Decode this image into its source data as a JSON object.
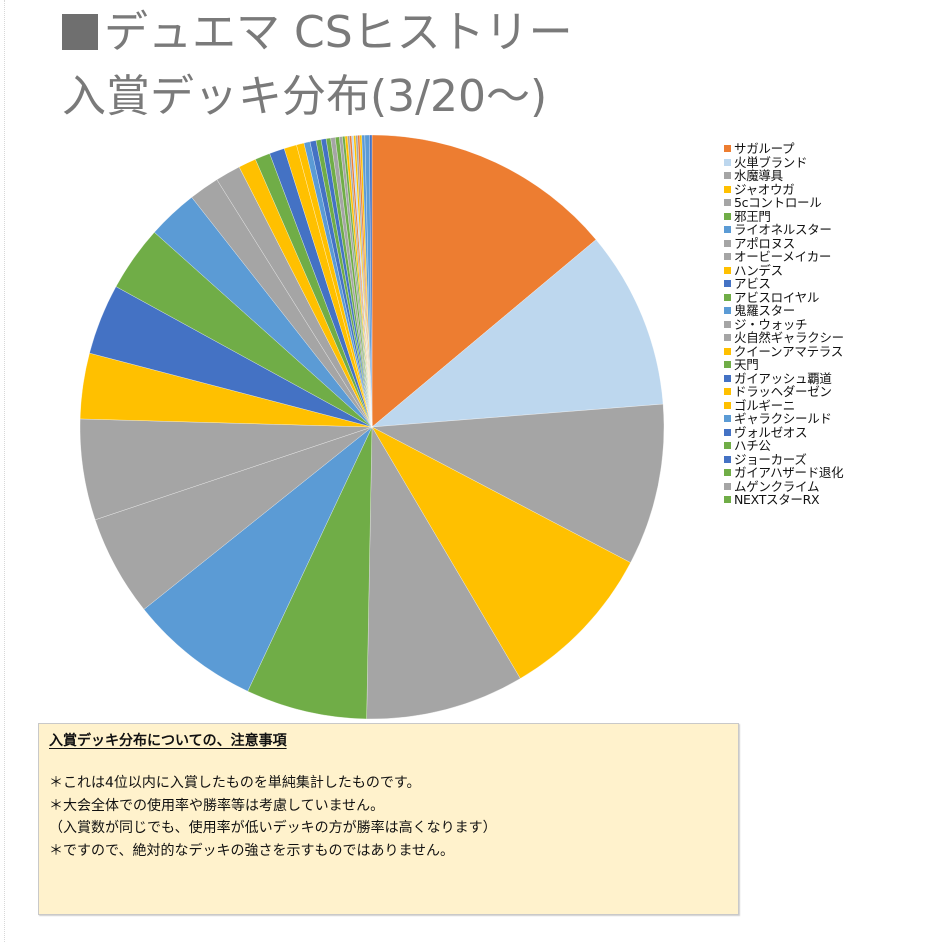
{
  "header": {
    "title_line1": "デュエマ CSヒストリー",
    "title_line2": "入賞デッキ分布(3/20～)",
    "title_square_icon": "black-square"
  },
  "chart_data": {
    "type": "pie",
    "title": "デュエマ CSヒストリー 入賞デッキ分布(3/20～)",
    "legend_position": "right",
    "start_angle_deg": 0,
    "direction": "clockwise",
    "units": "degrees (estimated from pixels)",
    "slices": [
      {
        "name": "サガループ",
        "value": 49.8,
        "color": "#ED7D31",
        "legend": true
      },
      {
        "name": "火単ブランド",
        "value": 35.2,
        "color": "#BDD7EE",
        "legend": true
      },
      {
        "name": "水魔導具",
        "value": 32.0,
        "color": "#A5A5A5",
        "legend": true
      },
      {
        "name": "ジャオウガ",
        "value": 31.6,
        "color": "#FFC000",
        "legend": true
      },
      {
        "name": "5cコントロール",
        "value": 31.4,
        "color": "#A5A5A5",
        "legend": true
      },
      {
        "name": "邪王門",
        "value": 24.0,
        "color": "#70AD47",
        "legend": true
      },
      {
        "name": "ライオネルスター",
        "value": 26.0,
        "color": "#5B9BD5",
        "legend": true
      },
      {
        "name": "アポロヌス",
        "value": 20.0,
        "color": "#A5A5A5",
        "legend": true
      },
      {
        "name": "オービーメイカー",
        "value": 20.0,
        "color": "#A5A5A5",
        "legend": true
      },
      {
        "name": "ハンデス",
        "value": 13.0,
        "color": "#FFC000",
        "legend": true
      },
      {
        "name": "アビス",
        "value": 14.0,
        "color": "#4472C4",
        "legend": true
      },
      {
        "name": "アビスロイヤル",
        "value": 13.0,
        "color": "#70AD47",
        "legend": true
      },
      {
        "name": "鬼羅スター",
        "value": 10.0,
        "color": "#5B9BD5",
        "legend": true
      },
      {
        "name": "ジ・ウォッチ",
        "value": 6.0,
        "color": "#A5A5A5",
        "legend": true
      },
      {
        "name": "火自然ギャラクシー",
        "value": 5.0,
        "color": "#A5A5A5",
        "legend": true
      },
      {
        "name": "クイーンアマテラス",
        "value": 3.5,
        "color": "#FFC000",
        "legend": true
      },
      {
        "name": "天門",
        "value": 3.0,
        "color": "#70AD47",
        "legend": true
      },
      {
        "name": "ガイアッシュ覇道",
        "value": 3.0,
        "color": "#4472C4",
        "legend": true
      },
      {
        "name": "ドラッヘダーゼン",
        "value": 2.5,
        "color": "#FFC000",
        "legend": true
      },
      {
        "name": "ゴルギーニ",
        "value": 1.5,
        "color": "#FFC000",
        "legend": true
      },
      {
        "name": "ギャラクシールド",
        "value": 1.2,
        "color": "#5B9BD5",
        "legend": true
      },
      {
        "name": "ヴォルゼオス",
        "value": 1.2,
        "color": "#4472C4",
        "legend": true
      },
      {
        "name": "ハチ公",
        "value": 1.0,
        "color": "#70AD47",
        "legend": true
      },
      {
        "name": "ジョーカーズ",
        "value": 1.0,
        "color": "#4472C4",
        "legend": true
      },
      {
        "name": "ガイアハザード退化",
        "value": 0.9,
        "color": "#70AD47",
        "legend": true
      },
      {
        "name": "ムゲンクライム",
        "value": 0.9,
        "color": "#A5A5A5",
        "legend": true
      },
      {
        "name": "NEXTスターRX",
        "value": 0.8,
        "color": "#70AD47",
        "legend": true
      },
      {
        "name": "",
        "value": 0.6,
        "color": "#A5A5A5",
        "legend": false
      },
      {
        "name": "",
        "value": 0.5,
        "color": "#70AD47",
        "legend": false
      },
      {
        "name": "",
        "value": 0.5,
        "color": "#FFC000",
        "legend": false
      },
      {
        "name": "",
        "value": 0.4,
        "color": "#A5A5A5",
        "legend": false
      },
      {
        "name": "",
        "value": 0.4,
        "color": "#ED7D31",
        "legend": false
      },
      {
        "name": "",
        "value": 0.4,
        "color": "#BDD7EE",
        "legend": false
      },
      {
        "name": "",
        "value": 0.4,
        "color": "#FFC000",
        "legend": false
      },
      {
        "name": "",
        "value": 0.4,
        "color": "#A5A5A5",
        "legend": false
      },
      {
        "name": "",
        "value": 0.4,
        "color": "#ED7D31",
        "legend": false
      },
      {
        "name": "",
        "value": 0.4,
        "color": "#FFC000",
        "legend": false
      },
      {
        "name": "",
        "value": 0.6,
        "color": "#5B9BD5",
        "legend": false
      },
      {
        "name": "",
        "value": 0.9,
        "color": "#5B9BD5",
        "legend": false
      },
      {
        "name": "",
        "value": 0.5,
        "color": "#4472C4",
        "legend": false
      }
    ]
  },
  "notes": {
    "title": "入賞デッキ分布についての、注意事項",
    "lines": [
      "＊これは4位以内に入賞したものを単純集計したものです。",
      "＊大会全体での使用率や勝率等は考慮していません。",
      "（入賞数が同じでも、使用率が低いデッキの方が勝率は高くなります）",
      "＊ですので、絶対的なデッキの強さを示すものではありません。"
    ]
  }
}
